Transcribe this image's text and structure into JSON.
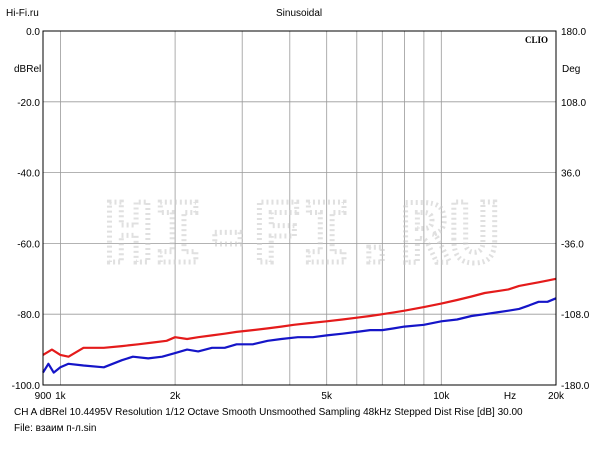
{
  "header": {
    "left_label": "Hi-Fi.ru",
    "center_label": "Sinusoidal",
    "brand": "CLIO"
  },
  "watermark": "HI-FI.RU",
  "footer": {
    "line1": "CH A   dBRel 10.4495V  Resolution 1/12 Octave   Smooth Unsmoothed   Sampling 48kHz   Stepped    Dist Rise [dB] 30.00",
    "line2": "File: взаим п-л.sin"
  },
  "colors": {
    "grid": "#9a9a9a",
    "frame": "#000000",
    "red_series": "#e41b1b",
    "blue_series": "#1515c8",
    "watermark": "#c8c8c8"
  },
  "chart_data": {
    "type": "line",
    "title": "Sinusoidal",
    "x_scale": "log",
    "xlim": [
      900,
      20000
    ],
    "x_ticks": [
      {
        "value": 900,
        "label": "900"
      },
      {
        "value": 1000,
        "label": "1k"
      },
      {
        "value": 2000,
        "label": "2k"
      },
      {
        "value": 5000,
        "label": "5k"
      },
      {
        "value": 10000,
        "label": "10k"
      },
      {
        "value": 20000,
        "label": "20k"
      }
    ],
    "x_unit_label": "Hz",
    "x_grid": [
      1000,
      2000,
      3000,
      4000,
      5000,
      6000,
      7000,
      8000,
      9000,
      10000,
      20000
    ],
    "ylim": [
      -100,
      0
    ],
    "ylabel": "dBRel",
    "y_ticks": [
      "0.0",
      "-20.0",
      "-40.0",
      "-60.0",
      "-80.0",
      "-100.0"
    ],
    "y2lim": [
      -180,
      180
    ],
    "y2label": "Deg",
    "y2_ticks": [
      "180.0",
      "108.0",
      "36.0",
      "-36.0",
      "-108.0",
      "-180.0"
    ],
    "grid": true,
    "series": [
      {
        "color": "#e41b1b",
        "x": [
          900,
          950,
          1000,
          1050,
          1150,
          1300,
          1450,
          1600,
          1750,
          1900,
          2000,
          2150,
          2300,
          2500,
          2700,
          2900,
          3200,
          3500,
          3800,
          4100,
          4500,
          5000,
          5500,
          6000,
          6500,
          7000,
          7500,
          8000,
          9000,
          10000,
          11000,
          12000,
          13000,
          14000,
          15000,
          16000,
          17000,
          18000,
          19000,
          20000
        ],
        "y": [
          -91.5,
          -90.0,
          -91.5,
          -92.0,
          -89.5,
          -89.5,
          -89.0,
          -88.5,
          -88.0,
          -87.5,
          -86.5,
          -87.0,
          -86.5,
          -86.0,
          -85.5,
          -85.0,
          -84.5,
          -84.0,
          -83.5,
          -83.0,
          -82.5,
          -82.0,
          -81.5,
          -81.0,
          -80.5,
          -80.0,
          -79.5,
          -79.0,
          -78.0,
          -77.0,
          -76.0,
          -75.0,
          -74.0,
          -73.5,
          -73.0,
          -72.0,
          -71.5,
          -71.0,
          -70.5,
          -70.0
        ]
      },
      {
        "color": "#1515c8",
        "x": [
          900,
          930,
          960,
          1000,
          1050,
          1150,
          1300,
          1450,
          1550,
          1700,
          1850,
          2000,
          2150,
          2300,
          2500,
          2700,
          2900,
          3200,
          3500,
          3800,
          4200,
          4600,
          5000,
          5500,
          6000,
          6500,
          7000,
          7500,
          8000,
          9000,
          10000,
          11000,
          12000,
          13000,
          14000,
          15000,
          16000,
          17000,
          18000,
          19000,
          20000
        ],
        "y": [
          -96.5,
          -94.0,
          -96.5,
          -95.0,
          -94.0,
          -94.5,
          -95.0,
          -93.0,
          -92.0,
          -92.5,
          -92.0,
          -91.0,
          -90.0,
          -90.5,
          -89.5,
          -89.5,
          -88.5,
          -88.5,
          -87.5,
          -87.0,
          -86.5,
          -86.5,
          -86.0,
          -85.5,
          -85.0,
          -84.5,
          -84.5,
          -84.0,
          -83.5,
          -83.0,
          -82.0,
          -81.5,
          -80.5,
          -80.0,
          -79.5,
          -79.0,
          -78.5,
          -77.5,
          -76.5,
          -76.5,
          -75.5
        ]
      }
    ]
  }
}
